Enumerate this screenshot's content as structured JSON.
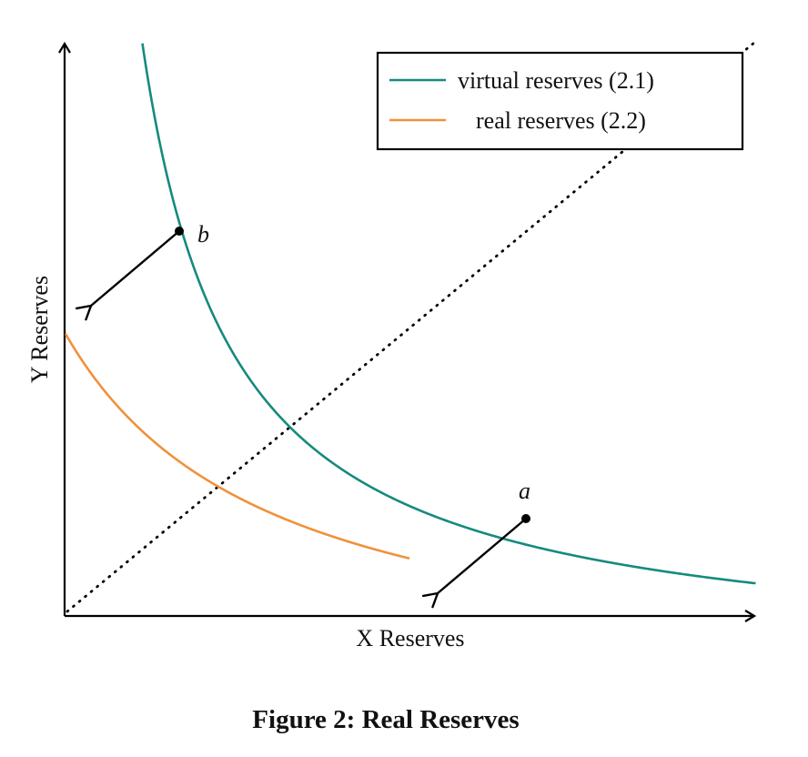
{
  "figure": {
    "caption": "Figure 2: Real Reserves",
    "x_axis_label": "X Reserves",
    "y_axis_label": "Y Reserves"
  },
  "legend": {
    "position": "top-right",
    "items": [
      {
        "label": "virtual reserves (2.1)",
        "color": "#168a7e"
      },
      {
        "label": "real reserves (2.2)",
        "color": "#f0913b"
      }
    ]
  },
  "points": {
    "a": {
      "label": "a"
    },
    "b": {
      "label": "b"
    }
  },
  "colors": {
    "axis": "#000000",
    "diagonal": "#000000",
    "arrow": "#000000",
    "point": "#000000"
  }
}
